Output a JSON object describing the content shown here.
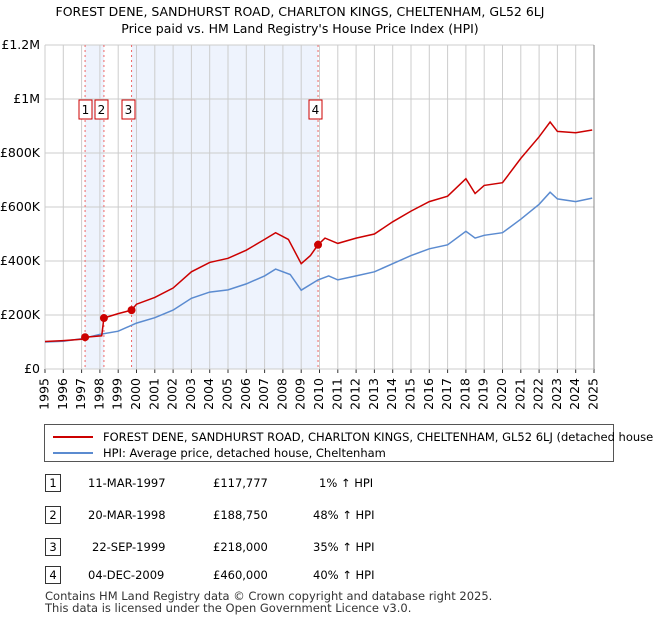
{
  "title_line1": "FOREST DENE, SANDHURST ROAD, CHARLTON KINGS, CHELTENHAM, GL52 6LJ",
  "title_line2": "Price paid vs. HM Land Registry's House Price Index (HPI)",
  "chart_data": {
    "type": "line",
    "xlim": [
      1995,
      2025
    ],
    "ylim": [
      0,
      1200000
    ],
    "x_ticks": [
      "1995",
      "1996",
      "1997",
      "1998",
      "1999",
      "2000",
      "2001",
      "2002",
      "2003",
      "2004",
      "2005",
      "2006",
      "2007",
      "2008",
      "2009",
      "2010",
      "2011",
      "2012",
      "2013",
      "2014",
      "2015",
      "2016",
      "2017",
      "2018",
      "2019",
      "2020",
      "2021",
      "2022",
      "2023",
      "2024",
      "2025"
    ],
    "y_ticks": [
      {
        "v": 0,
        "label": "£0"
      },
      {
        "v": 200000,
        "label": "£200K"
      },
      {
        "v": 400000,
        "label": "£400K"
      },
      {
        "v": 600000,
        "label": "£600K"
      },
      {
        "v": 800000,
        "label": "£800K"
      },
      {
        "v": 1000000,
        "label": "£1M"
      },
      {
        "v": 1200000,
        "label": "£1.2M"
      }
    ],
    "grid": true,
    "series": [
      {
        "name": "FOREST DENE, SANDHURST ROAD, CHARLTON KINGS, CHELTENHAM, GL52 6LJ (detached house",
        "color": "#cc0000",
        "points": [
          [
            1995,
            102000
          ],
          [
            1996,
            105000
          ],
          [
            1997,
            110000
          ],
          [
            1997.19,
            117777
          ],
          [
            1998.1,
            123000
          ],
          [
            1998.22,
            188750
          ],
          [
            1999,
            205000
          ],
          [
            1999.73,
            218000
          ],
          [
            2000,
            240000
          ],
          [
            2001,
            265000
          ],
          [
            2002,
            300000
          ],
          [
            2003,
            360000
          ],
          [
            2004,
            395000
          ],
          [
            2005,
            410000
          ],
          [
            2006,
            440000
          ],
          [
            2007,
            480000
          ],
          [
            2007.6,
            505000
          ],
          [
            2008.3,
            480000
          ],
          [
            2009.0,
            390000
          ],
          [
            2009.5,
            420000
          ],
          [
            2009.92,
            460000
          ],
          [
            2010.3,
            485000
          ],
          [
            2011,
            465000
          ],
          [
            2012,
            485000
          ],
          [
            2013,
            500000
          ],
          [
            2014,
            545000
          ],
          [
            2015,
            585000
          ],
          [
            2016,
            620000
          ],
          [
            2017,
            640000
          ],
          [
            2018,
            705000
          ],
          [
            2018.5,
            650000
          ],
          [
            2019,
            680000
          ],
          [
            2020,
            690000
          ],
          [
            2021,
            780000
          ],
          [
            2022,
            860000
          ],
          [
            2022.6,
            915000
          ],
          [
            2023,
            880000
          ],
          [
            2024,
            875000
          ],
          [
            2024.9,
            885000
          ]
        ]
      },
      {
        "name": "HPI: Average price, detached house, Cheltenham",
        "color": "#5b8bd0",
        "points": [
          [
            1995,
            100000
          ],
          [
            1996,
            103000
          ],
          [
            1997,
            112000
          ],
          [
            1998,
            128000
          ],
          [
            1999,
            140000
          ],
          [
            2000,
            170000
          ],
          [
            2001,
            190000
          ],
          [
            2002,
            218000
          ],
          [
            2003,
            262000
          ],
          [
            2004,
            285000
          ],
          [
            2005,
            293000
          ],
          [
            2006,
            315000
          ],
          [
            2007,
            345000
          ],
          [
            2007.6,
            370000
          ],
          [
            2008.4,
            350000
          ],
          [
            2009.0,
            292000
          ],
          [
            2009.92,
            330000
          ],
          [
            2010.5,
            345000
          ],
          [
            2011,
            330000
          ],
          [
            2012,
            345000
          ],
          [
            2013,
            360000
          ],
          [
            2014,
            390000
          ],
          [
            2015,
            420000
          ],
          [
            2016,
            445000
          ],
          [
            2017,
            460000
          ],
          [
            2018,
            510000
          ],
          [
            2018.5,
            485000
          ],
          [
            2019,
            495000
          ],
          [
            2020,
            505000
          ],
          [
            2021,
            555000
          ],
          [
            2022,
            610000
          ],
          [
            2022.6,
            655000
          ],
          [
            2023,
            630000
          ],
          [
            2024,
            620000
          ],
          [
            2024.9,
            633000
          ]
        ]
      }
    ],
    "sales": [
      {
        "n": "1",
        "x": 1997.19,
        "y": 117777
      },
      {
        "n": "2",
        "x": 1998.22,
        "y": 188750
      },
      {
        "n": "3",
        "x": 1999.73,
        "y": 218000
      },
      {
        "n": "4",
        "x": 2009.92,
        "y": 460000
      }
    ],
    "legend_position": "bottom"
  },
  "legend": {
    "red": "FOREST DENE, SANDHURST ROAD, CHARLTON KINGS, CHELTENHAM, GL52 6LJ (detached house",
    "blue": "HPI: Average price, detached house, Cheltenham"
  },
  "transactions": [
    {
      "n": "1",
      "date": "11-MAR-1997",
      "price": "£117,777",
      "hpi": "1% ↑ HPI"
    },
    {
      "n": "2",
      "date": "20-MAR-1998",
      "price": "£188,750",
      "hpi": "48% ↑ HPI"
    },
    {
      "n": "3",
      "date": "22-SEP-1999",
      "price": "£218,000",
      "hpi": "35% ↑ HPI"
    },
    {
      "n": "4",
      "date": "04-DEC-2009",
      "price": "£460,000",
      "hpi": "40% ↑ HPI"
    }
  ],
  "footer1": "Contains HM Land Registry data © Crown copyright and database right 2025.",
  "footer2": "This data is licensed under the Open Government Licence v3.0."
}
